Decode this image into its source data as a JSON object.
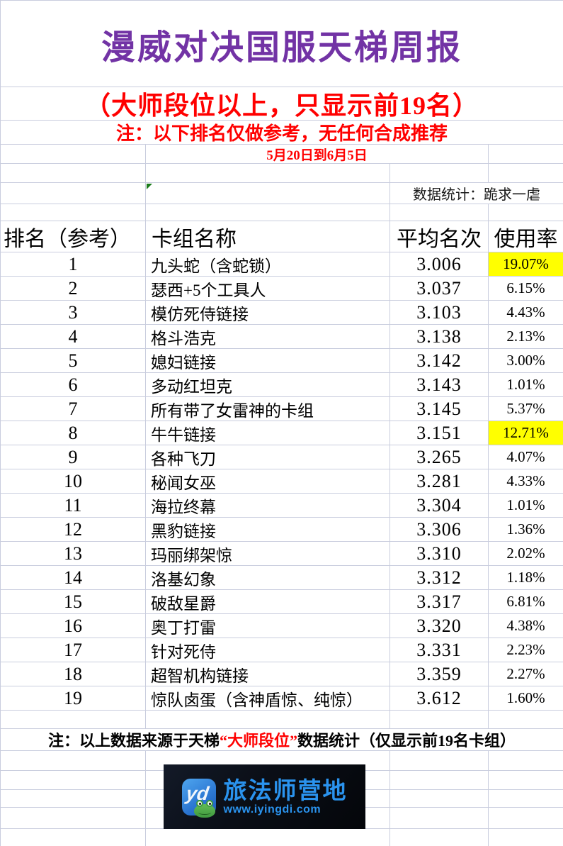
{
  "report": {
    "title": "漫威对决国服天梯周报",
    "subtitle": "（大师段位以上，只显示前19名）",
    "disclaimer": "注：以下排名仅做参考，无任何合成推荐",
    "date_range": "5月20日到6月5日",
    "stats_credit": "数据统计：跪求一虐"
  },
  "table": {
    "headers": {
      "rank": "排名（参考）",
      "deck": "卡组名称",
      "avg": "平均名次",
      "usage": "使用率"
    },
    "rows": [
      {
        "rank": "1",
        "deck": "九头蛇（含蛇锁）",
        "avg": "3.006",
        "usage": "19.07%",
        "highlight": true
      },
      {
        "rank": "2",
        "deck": "瑟西+5个工具人",
        "avg": "3.037",
        "usage": "6.15%",
        "highlight": false
      },
      {
        "rank": "3",
        "deck": "模仿死侍链接",
        "avg": "3.103",
        "usage": "4.43%",
        "highlight": false
      },
      {
        "rank": "4",
        "deck": "格斗浩克",
        "avg": "3.138",
        "usage": "2.13%",
        "highlight": false
      },
      {
        "rank": "5",
        "deck": "媳妇链接",
        "avg": "3.142",
        "usage": "3.00%",
        "highlight": false
      },
      {
        "rank": "6",
        "deck": "多动红坦克",
        "avg": "3.143",
        "usage": "1.01%",
        "highlight": false
      },
      {
        "rank": "7",
        "deck": "所有带了女雷神的卡组",
        "avg": "3.145",
        "usage": "5.37%",
        "highlight": false
      },
      {
        "rank": "8",
        "deck": "牛牛链接",
        "avg": "3.151",
        "usage": "12.71%",
        "highlight": true
      },
      {
        "rank": "9",
        "deck": "各种飞刀",
        "avg": "3.265",
        "usage": "4.07%",
        "highlight": false
      },
      {
        "rank": "10",
        "deck": "秘闻女巫",
        "avg": "3.281",
        "usage": "4.33%",
        "highlight": false
      },
      {
        "rank": "11",
        "deck": "海拉终幕",
        "avg": "3.304",
        "usage": "1.01%",
        "highlight": false
      },
      {
        "rank": "12",
        "deck": "黑豹链接",
        "avg": "3.306",
        "usage": "1.36%",
        "highlight": false
      },
      {
        "rank": "13",
        "deck": "玛丽绑架惊",
        "avg": "3.310",
        "usage": "2.02%",
        "highlight": false
      },
      {
        "rank": "14",
        "deck": "洛基幻象",
        "avg": "3.312",
        "usage": "1.18%",
        "highlight": false
      },
      {
        "rank": "15",
        "deck": "破敌星爵",
        "avg": "3.317",
        "usage": "6.81%",
        "highlight": false
      },
      {
        "rank": "16",
        "deck": "奥丁打雷",
        "avg": "3.320",
        "usage": "4.38%",
        "highlight": false
      },
      {
        "rank": "17",
        "deck": "针对死侍",
        "avg": "3.331",
        "usage": "2.23%",
        "highlight": false
      },
      {
        "rank": "18",
        "deck": "超智机构链接",
        "avg": "3.359",
        "usage": "2.27%",
        "highlight": false
      },
      {
        "rank": "19",
        "deck": "惊队卤蛋（含神盾惊、纯惊）",
        "avg": "3.612",
        "usage": "1.60%",
        "highlight": false
      }
    ]
  },
  "footnote": {
    "prefix": "注：以上数据来源于天梯",
    "emphasis": "“大师段位”",
    "suffix": "数据统计（仅显示前19名卡组）"
  },
  "logo": {
    "icon_letters": "yd",
    "brand": "旅法师营地",
    "website": "www.iyingdi.com"
  },
  "colors": {
    "title_purple": "#7233a5",
    "accent_red": "#ff0000",
    "highlight_yellow": "#ffff00",
    "gridline": "#c9cdde",
    "logo_blue": "#2a93ee",
    "logo_background": "#0a0e16",
    "error_marker_green": "#1c7c1c"
  }
}
